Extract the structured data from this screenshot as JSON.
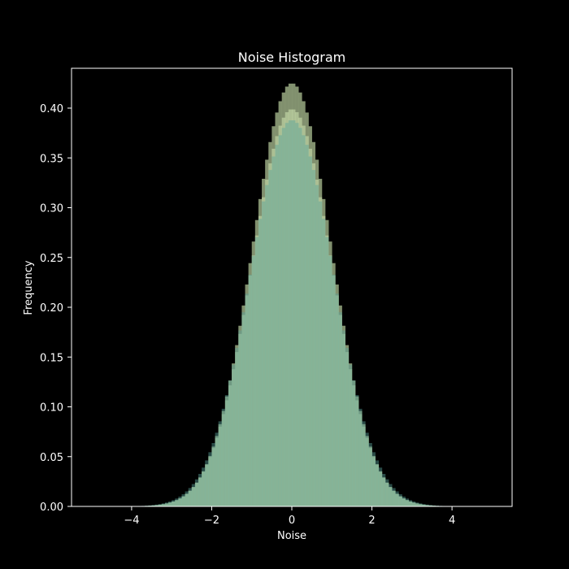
{
  "chart_data": {
    "type": "bar",
    "title": "Noise Histogram",
    "xlabel": "Noise",
    "ylabel": "Frequency",
    "xlim": [
      -5.5,
      5.5
    ],
    "ylim": [
      0,
      0.44
    ],
    "x_ticks": [
      -4,
      -2,
      0,
      2,
      4
    ],
    "x_tick_labels": [
      "−4",
      "−2",
      "0",
      "2",
      "4"
    ],
    "y_ticks": [
      0.0,
      0.05,
      0.1,
      0.15,
      0.2,
      0.25,
      0.3,
      0.35,
      0.4
    ],
    "y_tick_labels": [
      "0.00",
      "0.05",
      "0.10",
      "0.15",
      "0.20",
      "0.25",
      "0.30",
      "0.35",
      "0.40"
    ],
    "grid": false,
    "bins": {
      "start": -5.0,
      "end": 5.0,
      "count": 120
    },
    "series": [
      {
        "distribution": "normal",
        "mean": 0.0,
        "std": 0.99,
        "peak": 0.425,
        "color": "#8fa07a",
        "opacity": 0.9
      },
      {
        "distribution": "normal",
        "mean": 0.0,
        "std": 1.0,
        "peak": 0.399,
        "color": "#d8eeb8",
        "opacity": 0.5
      },
      {
        "distribution": "normal",
        "mean": 0.0,
        "std": 1.03,
        "peak": 0.388,
        "color": "#5aa39c",
        "opacity": 0.45
      }
    ],
    "colors": {
      "background": "#000000",
      "axes": "#ffffff"
    }
  }
}
